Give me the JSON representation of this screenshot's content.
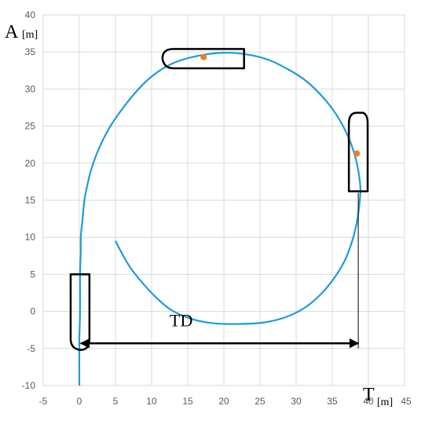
{
  "chart_data": {
    "type": "scatter",
    "title": "",
    "xlabel": "T",
    "xunit": "[m]",
    "ylabel": "A",
    "yunit": "[m]",
    "xlim": [
      -5,
      45
    ],
    "ylim": [
      -10,
      40
    ],
    "xticks": [
      -5,
      0,
      5,
      10,
      15,
      20,
      25,
      30,
      35,
      40,
      45
    ],
    "yticks": [
      -10,
      -5,
      0,
      5,
      10,
      15,
      20,
      25,
      30,
      35,
      40
    ],
    "grid": true,
    "colors": {
      "trajectory": "#1f9bd8",
      "marker": "#f07d27",
      "ship": "#000000",
      "grid": "#d9d9d9"
    },
    "series": [
      {
        "type": "line",
        "points": [
          [
            0,
            -10
          ],
          [
            0,
            -4
          ],
          [
            0.1,
            0
          ],
          [
            0.1,
            5
          ],
          [
            0.2,
            8
          ],
          [
            0.2,
            10
          ],
          [
            0.4,
            12
          ],
          [
            0.7,
            15
          ],
          [
            1.1,
            17
          ],
          [
            1.6,
            19
          ],
          [
            2.3,
            21
          ],
          [
            3.2,
            23
          ],
          [
            4.3,
            25
          ],
          [
            5.7,
            27
          ],
          [
            7.3,
            29
          ],
          [
            9.2,
            31
          ],
          [
            11.3,
            32.6
          ],
          [
            13.5,
            33.7
          ],
          [
            16.5,
            34.5
          ],
          [
            20,
            34.9
          ],
          [
            23,
            34.7
          ],
          [
            26,
            34.0
          ],
          [
            29,
            32.6
          ],
          [
            31.5,
            31.0
          ],
          [
            33.8,
            28.8
          ],
          [
            35.6,
            26.5
          ],
          [
            37.0,
            24.0
          ],
          [
            38.0,
            21.5
          ],
          [
            38.6,
            19.0
          ],
          [
            38.9,
            16.5
          ],
          [
            38.7,
            14.0
          ],
          [
            38.3,
            11.5
          ],
          [
            37.6,
            9.0
          ],
          [
            36.6,
            6.6
          ],
          [
            35.2,
            4.4
          ],
          [
            33.4,
            2.3
          ],
          [
            31.2,
            0.5
          ],
          [
            28.5,
            -0.8
          ],
          [
            25.5,
            -1.5
          ],
          [
            22,
            -1.7
          ],
          [
            18.5,
            -1.6
          ],
          [
            15.5,
            -1.0
          ],
          [
            12.7,
            0.2
          ],
          [
            10.5,
            2.0
          ],
          [
            8.6,
            4.0
          ],
          [
            7,
            6
          ],
          [
            5.8,
            8
          ],
          [
            5,
            9.5
          ]
        ]
      },
      {
        "type": "scatter",
        "points": [
          [
            17.2,
            34.3
          ],
          [
            38.4,
            21.3
          ]
        ]
      }
    ],
    "annotations": [
      {
        "text": "TD",
        "x": 12.5,
        "y": -2
      },
      {
        "kind": "double-arrow",
        "x1": 0.2,
        "y1": -4.3,
        "x2": 38.6,
        "y2": -4.3
      },
      {
        "kind": "reference-line",
        "x1": 38.6,
        "y1": -5,
        "x2": 38.6,
        "y2": 16
      }
    ],
    "ship_outlines": [
      {
        "heading": "up",
        "cx": 38.6,
        "y_bottom": 16.2,
        "y_top": 26.8,
        "half_width": 1.3
      },
      {
        "heading": "left",
        "cy": 34.1,
        "x_left": 11.5,
        "x_right": 22.8,
        "half_height": 1.3
      },
      {
        "heading": "down",
        "cx": 0.1,
        "y_top": 5,
        "y_bottom": -5.2,
        "half_width": 1.3
      }
    ]
  }
}
